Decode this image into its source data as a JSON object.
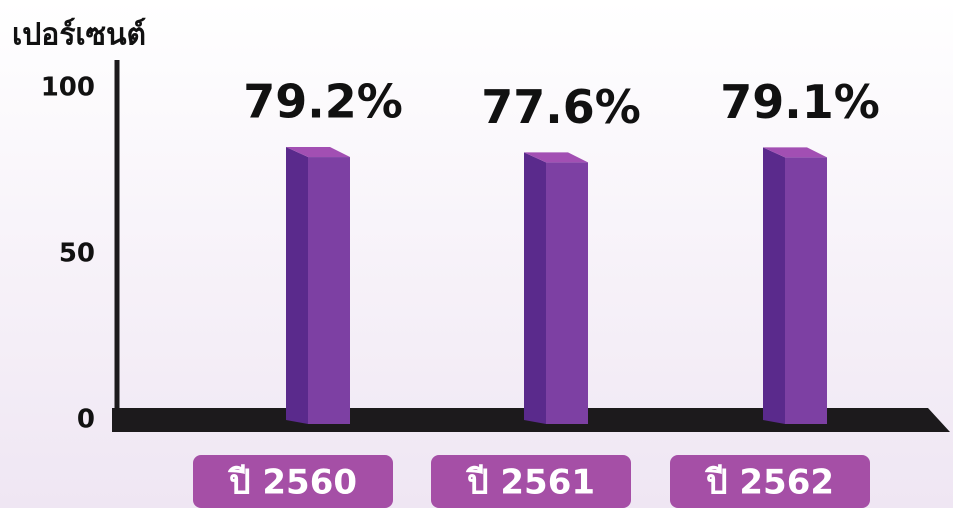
{
  "chart_data": {
    "type": "bar3d",
    "y_label": "เปอร์เซนต์",
    "categories": [
      "ปี 2560",
      "ปี 2561",
      "ปี 2562"
    ],
    "values": [
      79.2,
      77.6,
      79.1
    ],
    "value_labels": [
      "79.2%",
      "77.6%",
      "79.1%"
    ],
    "color": "#7d40a3",
    "ylim": [
      0,
      100
    ],
    "yticks": [
      0,
      50,
      100
    ]
  }
}
